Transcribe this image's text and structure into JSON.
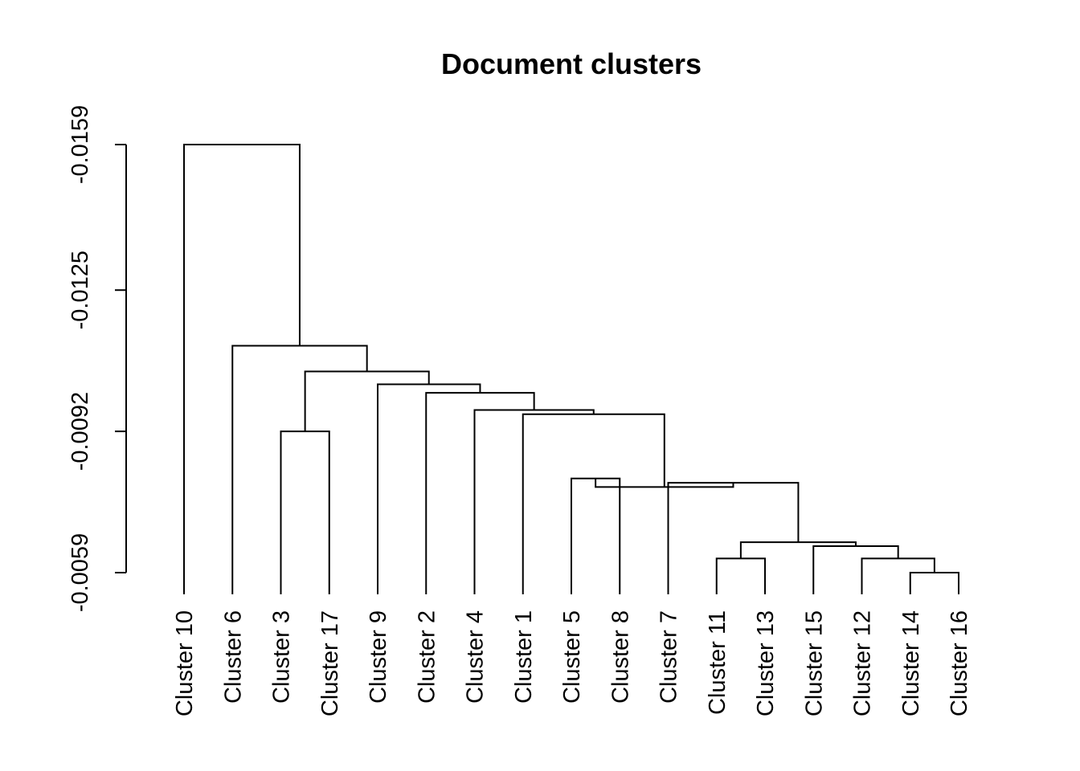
{
  "chart_data": {
    "type": "dendrogram",
    "title": "Document clusters",
    "xlabel": "",
    "ylabel": "",
    "y_ticks": [
      -0.0159,
      -0.0125,
      -0.0092,
      -0.0059
    ],
    "y_tick_labels": [
      "-0.0159",
      "-0.0125",
      "-0.0092",
      "-0.0059"
    ],
    "leaves": [
      "Cluster 10",
      "Cluster 6",
      "Cluster 3",
      "Cluster 17",
      "Cluster 9",
      "Cluster 2",
      "Cluster 4",
      "Cluster 1",
      "Cluster 5",
      "Cluster 8",
      "Cluster 7",
      "Cluster 11",
      "Cluster 13",
      "Cluster 15",
      "Cluster 12",
      "Cluster 14",
      "Cluster 16"
    ],
    "merges": [
      {
        "children": [
          "Cluster 14",
          "Cluster 16"
        ],
        "height": -0.0059
      },
      {
        "children": [
          "Cluster 12",
          "Cluster 14+16"
        ],
        "height": -0.00623
      },
      {
        "children": [
          "Cluster 11",
          "Cluster 13"
        ],
        "height": -0.00623
      },
      {
        "children": [
          "Cluster 15",
          "Cluster 12+14+16"
        ],
        "height": -0.00652
      },
      {
        "children": [
          "Cluster 11+13",
          "Cluster 15+12+14+16"
        ],
        "height": -0.00661
      },
      {
        "children": [
          "Cluster 5",
          "Cluster 8"
        ],
        "height": -0.0081
      },
      {
        "children": [
          "Cluster 7",
          "Cluster 11..16"
        ],
        "height": -0.008
      },
      {
        "children": [
          "Cluster 5+8",
          "Cluster 7+11..16"
        ],
        "height": -0.0079
      },
      {
        "children": [
          "Cluster 1",
          "Cluster 5..16"
        ],
        "height": -0.0096
      },
      {
        "children": [
          "Cluster 4",
          "Cluster 1..16"
        ],
        "height": -0.0097
      },
      {
        "children": [
          "Cluster 2",
          "Cluster 4..16"
        ],
        "height": -0.0101
      },
      {
        "children": [
          "Cluster 9",
          "Cluster 2..16"
        ],
        "height": -0.0103
      },
      {
        "children": [
          "Cluster 3",
          "Cluster 17"
        ],
        "height": -0.0092
      },
      {
        "children": [
          "Cluster 3+17",
          "Cluster 9..16"
        ],
        "height": -0.0106
      },
      {
        "children": [
          "Cluster 6",
          "Cluster 3..16"
        ],
        "height": -0.0112
      },
      {
        "children": [
          "Cluster 10",
          "Cluster 6..16"
        ],
        "height": -0.0159
      }
    ]
  }
}
